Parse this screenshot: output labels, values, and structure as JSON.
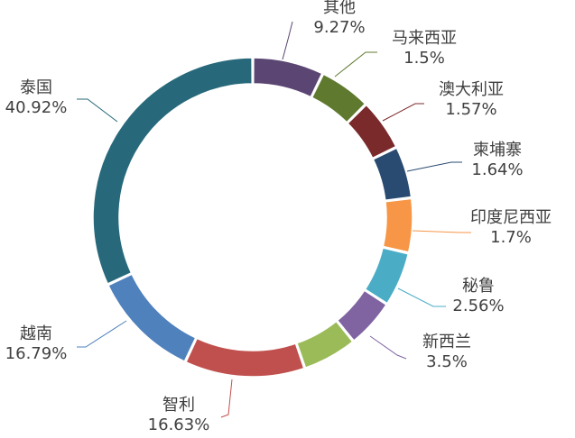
{
  "chart_data": {
    "type": "pie",
    "variant": "donut",
    "title": "",
    "legend": "none",
    "slices": [
      {
        "name": "其他",
        "value": 9.27,
        "label": "9.27%",
        "color": "#4f3a67"
      },
      {
        "name": "马来西亚",
        "value": 1.5,
        "label": "1.5%",
        "color": "#5e7b2d"
      },
      {
        "name": "澳大利亚",
        "value": 1.57,
        "label": "1.57%",
        "color": "#7b2a2c"
      },
      {
        "name": "柬埔寨",
        "value": 1.64,
        "label": "1.64%",
        "color": "#294b72"
      },
      {
        "name": "印度尼西亚",
        "value": 1.7,
        "label": "1.7%",
        "color": "#f79646"
      },
      {
        "name": "秘鲁",
        "value": 2.56,
        "label": "2.56%",
        "color": "#4bacc6"
      },
      {
        "name": "新西兰",
        "value": 3.5,
        "label": "3.5%",
        "color": "#8064a2"
      },
      {
        "name": "智利",
        "value": 16.63,
        "label": "16.63%",
        "color": "#9bbb59"
      },
      {
        "name": "越南",
        "value": 16.79,
        "label": "16.79%",
        "color": "#c0504d"
      },
      {
        "name": "泰国",
        "value": 40.92,
        "label": "40.92%",
        "color": "#4f81bd"
      }
    ]
  }
}
